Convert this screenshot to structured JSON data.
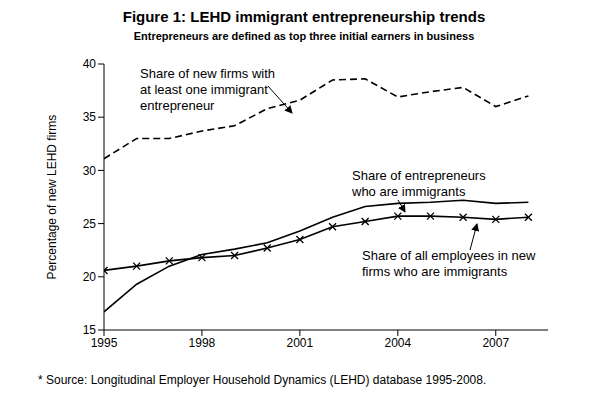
{
  "chart_data": {
    "type": "line",
    "title": "Figure 1: LEHD immigrant entrepreneurship trends",
    "subtitle": "Entrepreneurs are defined as top three initial earners in business",
    "y_label": "Percentage of new LEHD firms",
    "source": "* Source: Longitudinal Employer Household Dynamics (LEHD) database 1995-2008.",
    "x": [
      1995,
      1996,
      1997,
      1998,
      1999,
      2000,
      2001,
      2002,
      2003,
      2004,
      2005,
      2006,
      2007,
      2008
    ],
    "xlim": [
      1995,
      2008.6
    ],
    "xticks": [
      1995,
      1998,
      2001,
      2004,
      2007
    ],
    "ylim": [
      15,
      40
    ],
    "yticks": [
      15,
      20,
      25,
      30,
      35,
      40
    ],
    "grid": false,
    "series": [
      {
        "name": "Share of new firms with at least one immigrant entrepreneur",
        "color": "#000000",
        "line_style": "dashed",
        "values": [
          31.1,
          33.0,
          33.0,
          33.7,
          34.2,
          35.8,
          36.6,
          38.5,
          38.6,
          36.9,
          37.4,
          37.8,
          36.0,
          37.0
        ]
      },
      {
        "name": "Share of entrepreneurs who are immigrants",
        "color": "#000000",
        "line_style": "solid",
        "values": [
          16.7,
          19.3,
          21.0,
          22.1,
          22.6,
          23.2,
          24.3,
          25.6,
          26.6,
          26.9,
          27.0,
          27.2,
          26.9,
          27.0
        ]
      },
      {
        "name": "Share of all employees in new firms who are immigrants",
        "color": "#000000",
        "line_style": "solid",
        "marker": "x",
        "values": [
          20.6,
          21.0,
          21.5,
          21.8,
          22.0,
          22.7,
          23.5,
          24.7,
          25.2,
          25.7,
          25.7,
          25.6,
          25.4,
          25.6
        ]
      }
    ]
  }
}
